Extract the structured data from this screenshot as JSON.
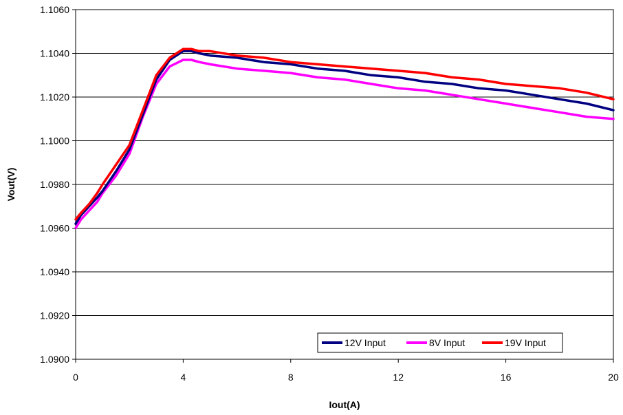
{
  "chart_data": {
    "type": "line",
    "title": "",
    "xlabel": "Iout(A)",
    "ylabel": "Vout(V)",
    "xlim": [
      0,
      20
    ],
    "ylim": [
      1.09,
      1.106
    ],
    "x_ticks": [
      "0",
      "4",
      "8",
      "12",
      "16",
      "20"
    ],
    "y_ticks": [
      "1.0900",
      "1.0920",
      "1.0940",
      "1.0960",
      "1.0980",
      "1.1000",
      "1.1020",
      "1.1040",
      "1.1060"
    ],
    "grid": "horizontal",
    "legend_position": "bottom-right",
    "series": [
      {
        "name": "12V Input",
        "color": "#000080",
        "x": [
          0,
          0.2,
          0.5,
          0.8,
          1,
          1.5,
          2,
          2.5,
          3,
          3.5,
          4,
          4.3,
          4.6,
          5,
          6,
          7,
          8,
          9,
          10,
          11,
          12,
          13,
          14,
          15,
          16,
          17,
          18,
          19,
          20
        ],
        "y": [
          1.0962,
          1.0966,
          1.097,
          1.0974,
          1.0977,
          1.0986,
          1.0996,
          1.1012,
          1.1028,
          1.1037,
          1.1041,
          1.1041,
          1.104,
          1.1039,
          1.1038,
          1.1036,
          1.1035,
          1.1033,
          1.1032,
          1.103,
          1.1029,
          1.1027,
          1.1026,
          1.1024,
          1.1023,
          1.1021,
          1.1019,
          1.1017,
          1.1014
        ]
      },
      {
        "name": "8V Input",
        "color": "#FF00FF",
        "x": [
          0,
          0.2,
          0.5,
          0.8,
          1,
          1.5,
          2,
          2.5,
          3,
          3.5,
          4,
          4.3,
          4.6,
          5,
          6,
          7,
          8,
          9,
          10,
          11,
          12,
          13,
          14,
          15,
          16,
          17,
          18,
          19,
          20
        ],
        "y": [
          1.096,
          1.0964,
          1.0968,
          1.0972,
          1.0976,
          1.0984,
          1.0994,
          1.1011,
          1.1026,
          1.1034,
          1.1037,
          1.1037,
          1.1036,
          1.1035,
          1.1033,
          1.1032,
          1.1031,
          1.1029,
          1.1028,
          1.1026,
          1.1024,
          1.1023,
          1.1021,
          1.1019,
          1.1017,
          1.1015,
          1.1013,
          1.1011,
          1.101
        ]
      },
      {
        "name": "19V Input",
        "color": "#FF0000",
        "x": [
          0,
          0.2,
          0.5,
          0.8,
          1,
          1.5,
          2,
          2.5,
          3,
          3.5,
          4,
          4.3,
          4.6,
          5,
          6,
          7,
          8,
          9,
          10,
          11,
          12,
          13,
          14,
          15,
          16,
          17,
          18,
          19,
          20
        ],
        "y": [
          1.0964,
          1.0967,
          1.0971,
          1.0976,
          1.098,
          1.0989,
          1.0998,
          1.1014,
          1.103,
          1.1038,
          1.1042,
          1.1042,
          1.1041,
          1.1041,
          1.1039,
          1.1038,
          1.1036,
          1.1035,
          1.1034,
          1.1033,
          1.1032,
          1.1031,
          1.1029,
          1.1028,
          1.1026,
          1.1025,
          1.1024,
          1.1022,
          1.1019
        ]
      }
    ]
  }
}
